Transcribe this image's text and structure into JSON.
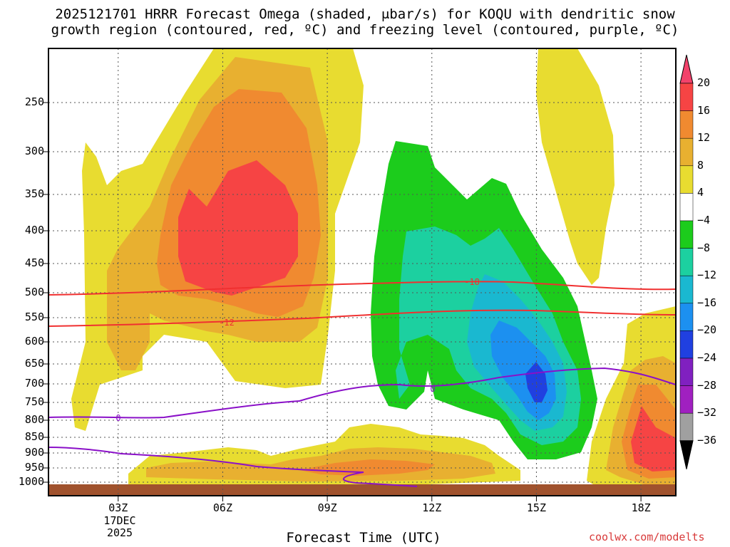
{
  "chart_data": {
    "type": "heatmap",
    "title_line1": "2025121701 HRRR Forecast Omega (shaded, μbar/s) for KOQU with dendritic snow",
    "title_line2": "growth region (contoured, red, ºC) and freezing level (contoured, purple, ºC)",
    "xlabel": "Forecast Time (UTC)",
    "ylabel": "",
    "x_ticks": [
      "03Z",
      "06Z",
      "09Z",
      "12Z",
      "15Z",
      "18Z"
    ],
    "x_date_label": "17DEC",
    "x_year_label": "2025",
    "x_range_hours": [
      1,
      19
    ],
    "y_ticks": [
      250,
      300,
      350,
      400,
      450,
      500,
      550,
      600,
      650,
      700,
      750,
      800,
      850,
      900,
      950,
      1000
    ],
    "y_range_hpa": [
      200,
      1025
    ],
    "colorbar": {
      "levels": [
        "20",
        "16",
        "12",
        "8",
        "4",
        "−4",
        "−8",
        "−12",
        "−16",
        "−20",
        "−24",
        "−28",
        "−32",
        "−36"
      ],
      "colors": [
        "#f2426b",
        "#f64444",
        "#f08a30",
        "#e8b030",
        "#e8dc30",
        "#ffffff",
        "#1ccc1c",
        "#1cd0a0",
        "#1ab8d0",
        "#1c90f0",
        "#2040e0",
        "#8020c0",
        "#a020c0",
        "#a0a0a0",
        "#000000"
      ]
    },
    "contours": [
      {
        "name": "dgz-top",
        "label": "-18",
        "color": "#f03030"
      },
      {
        "name": "dgz-bottom",
        "label": "-12",
        "color": "#f03030"
      },
      {
        "name": "freezing-level",
        "label": "0",
        "color": "#8a10c8"
      }
    ],
    "credit": "coolwx.com/modelts"
  }
}
